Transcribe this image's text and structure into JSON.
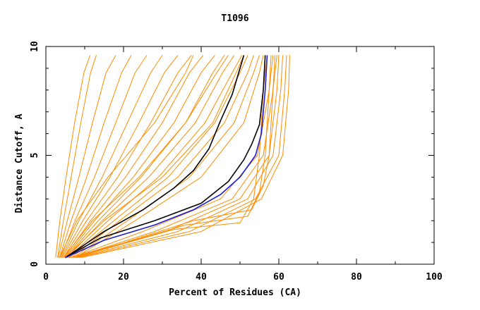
{
  "chart_data": {
    "type": "line",
    "title": "T1096",
    "xlabel": "Percent of Residues (CA)",
    "ylabel": "Distance Cutoff, A",
    "xlim": [
      0,
      100
    ],
    "ylim": [
      0,
      10
    ],
    "xticks": [
      "0",
      "20",
      "40",
      "60",
      "80",
      "100"
    ],
    "yticks": [
      "0",
      "5",
      "10"
    ],
    "grid": false,
    "colors": {
      "background": "#ffffff",
      "models": "#ff8c00",
      "highlight": "#000000",
      "reference": "#1f1fd0"
    },
    "series": [
      {
        "color": "#ff8c00",
        "x": [
          2.5,
          3.6,
          5.2,
          7.4,
          9.8,
          11.4
        ],
        "y": [
          0.3,
          2.0,
          4.0,
          6.5,
          8.8,
          9.6
        ]
      },
      {
        "color": "#ff8c00",
        "x": [
          3.0,
          4.5,
          6.5,
          9.0,
          11.5,
          13.0
        ],
        "y": [
          0.3,
          2.0,
          4.0,
          6.5,
          8.8,
          9.6
        ]
      },
      {
        "color": "#ff8c00",
        "x": [
          3.2,
          5.5,
          8.5,
          12.0,
          15.5,
          18.0
        ],
        "y": [
          0.3,
          2.0,
          4.0,
          6.5,
          8.8,
          9.6
        ]
      },
      {
        "color": "#ff8c00",
        "x": [
          3.5,
          6.5,
          10.5,
          15.0,
          19.5,
          22.0
        ],
        "y": [
          0.3,
          2.0,
          4.0,
          6.5,
          8.8,
          9.6
        ]
      },
      {
        "color": "#ff8c00",
        "x": [
          3.8,
          7.5,
          12.5,
          18.0,
          23.0,
          26.0
        ],
        "y": [
          0.3,
          2.0,
          4.0,
          6.5,
          8.8,
          9.6
        ]
      },
      {
        "color": "#ff8c00",
        "x": [
          4.0,
          8.5,
          14.5,
          21.0,
          27.0,
          30.0
        ],
        "y": [
          0.3,
          2.0,
          4.0,
          6.5,
          8.8,
          9.6
        ]
      },
      {
        "color": "#ff8c00",
        "x": [
          4.2,
          9.5,
          16.5,
          24.0,
          30.5,
          34.0
        ],
        "y": [
          0.3,
          2.0,
          4.0,
          6.5,
          8.8,
          9.6
        ]
      },
      {
        "color": "#ff8c00",
        "x": [
          4.5,
          10.5,
          18.5,
          27.0,
          34.0,
          37.5
        ],
        "y": [
          0.3,
          2.0,
          4.0,
          6.5,
          8.8,
          9.6
        ]
      },
      {
        "color": "#ff8c00",
        "x": [
          4.8,
          11.5,
          20.5,
          30.0,
          37.0,
          40.5
        ],
        "y": [
          0.3,
          2.0,
          4.0,
          6.5,
          8.8,
          9.6
        ]
      },
      {
        "color": "#ff8c00",
        "x": [
          5.0,
          12.5,
          22.5,
          33.0,
          40.0,
          43.5
        ],
        "y": [
          0.3,
          2.0,
          4.0,
          6.5,
          8.8,
          9.6
        ]
      },
      {
        "color": "#ff8c00",
        "x": [
          5.2,
          13.5,
          24.5,
          36.0,
          43.0,
          46.0
        ],
        "y": [
          0.3,
          2.0,
          4.0,
          6.5,
          8.8,
          9.6
        ]
      },
      {
        "color": "#ff8c00",
        "x": [
          5.5,
          14.5,
          26.5,
          38.5,
          45.5,
          48.5
        ],
        "y": [
          0.3,
          2.0,
          4.0,
          6.5,
          8.8,
          9.6
        ]
      },
      {
        "color": "#ff8c00",
        "x": [
          5.8,
          16.0,
          29.0,
          41.0,
          48.0,
          50.5
        ],
        "y": [
          0.3,
          2.0,
          4.0,
          6.5,
          8.8,
          9.6
        ]
      },
      {
        "color": "#ff8c00",
        "x": [
          6.0,
          17.5,
          31.5,
          43.5,
          50.0,
          52.0
        ],
        "y": [
          0.3,
          2.0,
          4.0,
          6.5,
          8.8,
          9.6
        ]
      },
      {
        "color": "#ff8c00",
        "x": [
          6.5,
          19.0,
          34.0,
          46.0,
          52.0,
          53.5
        ],
        "y": [
          0.3,
          2.0,
          4.0,
          6.5,
          8.8,
          9.6
        ]
      },
      {
        "color": "#ff8c00",
        "x": [
          7.0,
          21.0,
          37.0,
          48.5,
          53.5,
          55.0
        ],
        "y": [
          0.3,
          2.0,
          4.0,
          6.5,
          8.8,
          9.6
        ]
      },
      {
        "color": "#ff8c00",
        "x": [
          7.5,
          23.0,
          40.0,
          51.0,
          55.0,
          56.0
        ],
        "y": [
          0.3,
          2.0,
          4.0,
          6.5,
          8.8,
          9.6
        ]
      },
      {
        "color": "#ff8c00",
        "x": [
          3.5,
          8.0,
          16.0,
          28.0,
          36.0,
          38.0
        ],
        "y": [
          0.3,
          2.0,
          4.0,
          6.5,
          8.8,
          9.6
        ]
      },
      {
        "color": "#ff8c00",
        "x": [
          4.5,
          12.0,
          24.0,
          36.0,
          44.0,
          47.0
        ],
        "y": [
          0.3,
          2.0,
          4.0,
          6.5,
          8.8,
          9.6
        ]
      },
      {
        "color": "#ff8c00",
        "x": [
          5.0,
          15.0,
          30.0,
          43.0,
          49.0,
          51.0
        ],
        "y": [
          0.3,
          2.0,
          4.0,
          6.5,
          8.8,
          9.6
        ]
      },
      {
        "color": "#ff8c00",
        "x": [
          6.5,
          25.0,
          45.0,
          54.5,
          57.5,
          58.0
        ],
        "y": [
          0.3,
          1.5,
          3.0,
          5.0,
          8.0,
          9.6
        ]
      },
      {
        "color": "#ff8c00",
        "x": [
          7.0,
          28.0,
          48.0,
          56.0,
          58.5,
          59.0
        ],
        "y": [
          0.3,
          1.5,
          3.0,
          5.0,
          8.0,
          9.6
        ]
      },
      {
        "color": "#ff8c00",
        "x": [
          7.5,
          31.0,
          50.0,
          57.5,
          59.5,
          60.0
        ],
        "y": [
          0.3,
          1.5,
          3.0,
          5.0,
          8.0,
          9.6
        ]
      },
      {
        "color": "#ff8c00",
        "x": [
          8.0,
          34.0,
          52.0,
          58.5,
          60.5,
          61.0
        ],
        "y": [
          0.3,
          1.5,
          3.0,
          5.0,
          8.0,
          9.6
        ]
      },
      {
        "color": "#ff8c00",
        "x": [
          8.5,
          37.0,
          54.0,
          60.0,
          61.5,
          62.0
        ],
        "y": [
          0.3,
          1.5,
          3.0,
          5.0,
          8.0,
          9.6
        ]
      },
      {
        "color": "#ff8c00",
        "x": [
          9.0,
          40.0,
          55.5,
          61.0,
          62.5,
          62.8
        ],
        "y": [
          0.3,
          1.5,
          3.0,
          5.0,
          8.0,
          9.6
        ]
      },
      {
        "color": "#ff8c00",
        "x": [
          6.0,
          33.0,
          50.0,
          53.5,
          55.0,
          56.0,
          57.0
        ],
        "y": [
          0.3,
          1.6,
          1.9,
          3.0,
          5.0,
          8.0,
          9.6
        ]
      },
      {
        "color": "#ff8c00",
        "x": [
          7.0,
          36.0,
          52.0,
          55.0,
          56.5,
          57.5,
          58.5
        ],
        "y": [
          0.3,
          1.8,
          2.2,
          3.3,
          5.0,
          8.0,
          9.6
        ]
      },
      {
        "color": "#ff8c00",
        "x": [
          8.0,
          38.0,
          53.0,
          56.0,
          57.5,
          58.5,
          59.5
        ],
        "y": [
          0.3,
          2.0,
          2.5,
          3.6,
          5.0,
          8.0,
          9.6
        ]
      },
      {
        "color": "#000000",
        "x": [
          5.0,
          15.0,
          25.0,
          33.0,
          38.0,
          42.0,
          45.0,
          48.0,
          50.0,
          51.0
        ],
        "y": [
          0.3,
          1.5,
          2.5,
          3.5,
          4.3,
          5.3,
          6.6,
          7.8,
          9.0,
          9.6
        ]
      },
      {
        "color": "#000000",
        "x": [
          5.0,
          14.0,
          28.0,
          40.0,
          47.0,
          51.0,
          53.0,
          55.0,
          56.0,
          56.5
        ],
        "y": [
          0.3,
          1.2,
          2.0,
          2.8,
          3.8,
          4.8,
          5.5,
          6.4,
          8.0,
          9.6
        ]
      },
      {
        "color": "#1f1fd0",
        "x": [
          5.0,
          15.0,
          28.0,
          38.0,
          45.0,
          50.0,
          54.0,
          55.5,
          56.5,
          57.0
        ],
        "y": [
          0.3,
          1.1,
          1.8,
          2.5,
          3.2,
          4.0,
          5.0,
          6.0,
          8.0,
          9.6
        ]
      }
    ]
  }
}
